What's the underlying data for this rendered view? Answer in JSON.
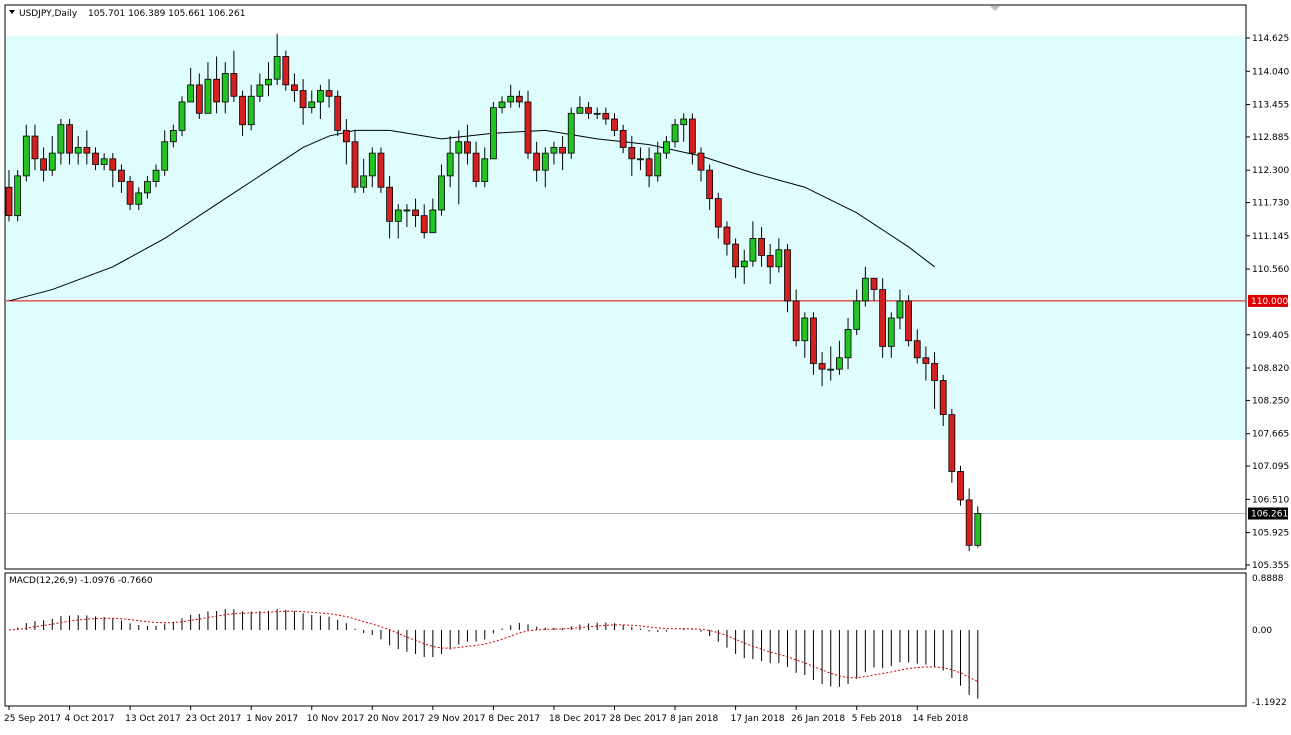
{
  "header": {
    "symbol_label": "USDJPY,Daily",
    "ohlc_values": "105.701 106.389 105.661 106.261"
  },
  "macd": {
    "label": "MACD(12,26,9) -1.0976 -0.7660",
    "axis_ticks": [
      "0.8888",
      "0.00",
      "-1.1922"
    ]
  },
  "colors": {
    "bull": "#22c322",
    "bear": "#d42020",
    "zone": "#e0fdfd",
    "level_line": "#e00000",
    "ma_line": "#000000",
    "signal_line": "#d00000"
  },
  "chart_data": {
    "type": "candlestick",
    "title": "USDJPY,Daily",
    "ylim": [
      105.355,
      114.625
    ],
    "y_ticks": [
      "114.625",
      "114.040",
      "113.455",
      "112.885",
      "112.300",
      "111.730",
      "111.145",
      "110.560",
      "109.405",
      "108.820",
      "108.250",
      "107.665",
      "107.095",
      "106.510",
      "105.925",
      "105.355"
    ],
    "x_tick_labels": [
      "25 Sep 2017",
      "4 Oct 2017",
      "13 Oct 2017",
      "23 Oct 2017",
      "1 Nov 2017",
      "10 Nov 2017",
      "20 Nov 2017",
      "29 Nov 2017",
      "8 Dec 2017",
      "18 Dec 2017",
      "28 Dec 2017",
      "8 Jan 2018",
      "17 Jan 2018",
      "26 Jan 2018",
      "5 Feb 2018",
      "14 Feb 2018"
    ],
    "x_tick_index": [
      0,
      7,
      14,
      21,
      28,
      35,
      42,
      49,
      56,
      63,
      70,
      77,
      84,
      91,
      98,
      105
    ],
    "horizontal_level": {
      "value": 110.0,
      "label": "110.000"
    },
    "current_price": {
      "value": 106.261,
      "label": "106.261"
    },
    "support_zone": [
      107.55,
      114.67
    ],
    "candles": [
      [
        112.0,
        111.5,
        112.3,
        111.4
      ],
      [
        111.5,
        112.2,
        112.3,
        111.4
      ],
      [
        112.2,
        112.9,
        113.1,
        112.1
      ],
      [
        112.9,
        112.5,
        113.1,
        112.3
      ],
      [
        112.5,
        112.3,
        112.7,
        112.1
      ],
      [
        112.3,
        112.6,
        112.9,
        112.2
      ],
      [
        112.6,
        113.1,
        113.2,
        112.4
      ],
      [
        113.1,
        112.6,
        113.2,
        112.4
      ],
      [
        112.6,
        112.7,
        112.9,
        112.4
      ],
      [
        112.7,
        112.6,
        113.0,
        112.4
      ],
      [
        112.6,
        112.4,
        112.7,
        112.3
      ],
      [
        112.4,
        112.5,
        112.6,
        112.3
      ],
      [
        112.5,
        112.3,
        112.6,
        112.0
      ],
      [
        112.3,
        112.1,
        112.4,
        111.9
      ],
      [
        112.1,
        111.7,
        112.2,
        111.6
      ],
      [
        111.7,
        111.9,
        112.0,
        111.6
      ],
      [
        111.9,
        112.1,
        112.2,
        111.8
      ],
      [
        112.1,
        112.3,
        112.4,
        112.0
      ],
      [
        112.3,
        112.8,
        113.0,
        112.2
      ],
      [
        112.8,
        113.0,
        113.1,
        112.7
      ],
      [
        113.0,
        113.5,
        113.6,
        112.9
      ],
      [
        113.5,
        113.8,
        114.1,
        113.5
      ],
      [
        113.8,
        113.3,
        114.0,
        113.2
      ],
      [
        113.3,
        113.9,
        114.2,
        113.3
      ],
      [
        113.9,
        113.5,
        114.3,
        113.3
      ],
      [
        113.5,
        114.0,
        114.2,
        113.3
      ],
      [
        114.0,
        113.6,
        114.4,
        113.5
      ],
      [
        113.6,
        113.1,
        113.7,
        112.9
      ],
      [
        113.1,
        113.6,
        113.8,
        113.0
      ],
      [
        113.6,
        113.8,
        114.0,
        113.5
      ],
      [
        113.8,
        113.9,
        114.2,
        113.6
      ],
      [
        113.9,
        114.3,
        114.7,
        113.8
      ],
      [
        114.3,
        113.8,
        114.4,
        113.7
      ],
      [
        113.8,
        113.7,
        114.0,
        113.5
      ],
      [
        113.7,
        113.4,
        113.9,
        113.1
      ],
      [
        113.4,
        113.5,
        113.7,
        113.3
      ],
      [
        113.5,
        113.7,
        113.8,
        113.2
      ],
      [
        113.7,
        113.6,
        113.9,
        113.4
      ],
      [
        113.6,
        113.0,
        113.7,
        112.9
      ],
      [
        113.0,
        112.8,
        113.2,
        112.4
      ],
      [
        112.8,
        112.0,
        113.0,
        111.9
      ],
      [
        112.0,
        112.2,
        112.5,
        111.9
      ],
      [
        112.2,
        112.6,
        112.7,
        112.0
      ],
      [
        112.6,
        112.0,
        112.7,
        111.9
      ],
      [
        112.0,
        111.4,
        112.2,
        111.1
      ],
      [
        111.4,
        111.6,
        111.7,
        111.1
      ],
      [
        111.6,
        111.6,
        111.7,
        111.3
      ],
      [
        111.6,
        111.5,
        111.8,
        111.3
      ],
      [
        111.5,
        111.2,
        111.7,
        111.1
      ],
      [
        111.2,
        111.6,
        111.8,
        111.2
      ],
      [
        111.6,
        112.2,
        112.4,
        111.5
      ],
      [
        112.2,
        112.6,
        112.9,
        112.0
      ],
      [
        112.6,
        112.8,
        113.0,
        111.7
      ],
      [
        112.8,
        112.6,
        113.1,
        112.4
      ],
      [
        112.6,
        112.1,
        112.8,
        112.0
      ],
      [
        112.1,
        112.5,
        112.7,
        112.0
      ],
      [
        112.5,
        113.4,
        113.5,
        112.5
      ],
      [
        113.4,
        113.5,
        113.6,
        113.3
      ],
      [
        113.5,
        113.6,
        113.8,
        113.4
      ],
      [
        113.6,
        113.5,
        113.7,
        113.4
      ],
      [
        113.5,
        112.6,
        113.7,
        112.5
      ],
      [
        112.6,
        112.3,
        112.8,
        112.1
      ],
      [
        112.3,
        112.6,
        112.7,
        112.0
      ],
      [
        112.6,
        112.7,
        112.8,
        112.4
      ],
      [
        112.7,
        112.6,
        112.9,
        112.3
      ],
      [
        112.6,
        113.3,
        113.4,
        112.5
      ],
      [
        113.3,
        113.4,
        113.6,
        113.3
      ],
      [
        113.4,
        113.3,
        113.5,
        113.2
      ],
      [
        113.3,
        113.3,
        113.4,
        113.2
      ],
      [
        113.3,
        113.2,
        113.4,
        113.1
      ],
      [
        113.2,
        113.0,
        113.3,
        112.9
      ],
      [
        113.0,
        112.7,
        113.1,
        112.6
      ],
      [
        112.7,
        112.5,
        112.9,
        112.2
      ],
      [
        112.5,
        112.5,
        112.7,
        112.3
      ],
      [
        112.5,
        112.2,
        112.7,
        112.0
      ],
      [
        112.2,
        112.6,
        112.8,
        112.1
      ],
      [
        112.6,
        112.8,
        112.9,
        112.5
      ],
      [
        112.8,
        113.1,
        113.2,
        112.7
      ],
      [
        113.1,
        113.2,
        113.3,
        112.8
      ],
      [
        113.2,
        112.6,
        113.3,
        112.4
      ],
      [
        112.6,
        112.3,
        112.7,
        112.1
      ],
      [
        112.3,
        111.8,
        112.4,
        111.6
      ],
      [
        111.8,
        111.3,
        111.9,
        111.1
      ],
      [
        111.3,
        111.0,
        111.4,
        110.8
      ],
      [
        111.0,
        110.6,
        111.1,
        110.4
      ],
      [
        110.6,
        110.7,
        110.9,
        110.3
      ],
      [
        110.7,
        111.1,
        111.4,
        110.6
      ],
      [
        111.1,
        110.8,
        111.3,
        110.6
      ],
      [
        110.8,
        110.6,
        111.0,
        110.3
      ],
      [
        110.6,
        110.9,
        111.1,
        110.5
      ],
      [
        110.9,
        110.0,
        111.0,
        109.8
      ],
      [
        110.0,
        109.3,
        110.2,
        109.2
      ],
      [
        109.3,
        109.7,
        109.8,
        109.0
      ],
      [
        109.7,
        108.9,
        109.8,
        108.7
      ],
      [
        108.9,
        108.8,
        109.1,
        108.5
      ],
      [
        108.8,
        108.8,
        109.2,
        108.6
      ],
      [
        108.8,
        109.0,
        109.3,
        108.7
      ],
      [
        109.0,
        109.5,
        109.7,
        108.8
      ],
      [
        109.5,
        110.0,
        110.2,
        109.4
      ],
      [
        110.0,
        110.4,
        110.6,
        109.9
      ],
      [
        110.4,
        110.2,
        110.4,
        110.0
      ],
      [
        110.2,
        109.2,
        110.4,
        109.0
      ],
      [
        109.2,
        109.7,
        109.8,
        109.0
      ],
      [
        109.7,
        110.0,
        110.2,
        109.5
      ],
      [
        110.0,
        109.3,
        110.1,
        109.2
      ],
      [
        109.3,
        109.0,
        109.5,
        108.9
      ],
      [
        109.0,
        108.9,
        109.2,
        108.6
      ],
      [
        108.9,
        108.6,
        109.1,
        108.1
      ],
      [
        108.6,
        108.0,
        108.7,
        107.8
      ],
      [
        108.0,
        107.0,
        108.1,
        106.8
      ],
      [
        107.0,
        106.5,
        107.1,
        106.4
      ],
      [
        106.5,
        105.701,
        106.7,
        105.6
      ],
      [
        105.701,
        106.261,
        106.389,
        105.661
      ]
    ],
    "moving_average_path": [
      [
        0,
        110.0
      ],
      [
        5,
        110.2
      ],
      [
        12,
        110.6
      ],
      [
        18,
        111.1
      ],
      [
        25,
        111.8
      ],
      [
        30,
        112.3
      ],
      [
        34,
        112.7
      ],
      [
        37,
        112.9
      ],
      [
        40,
        113.0
      ],
      [
        44,
        113.0
      ],
      [
        50,
        112.85
      ],
      [
        56,
        112.95
      ],
      [
        62,
        113.0
      ],
      [
        68,
        112.85
      ],
      [
        74,
        112.75
      ],
      [
        80,
        112.55
      ],
      [
        86,
        112.25
      ],
      [
        92,
        112.0
      ],
      [
        98,
        111.55
      ],
      [
        104,
        110.95
      ],
      [
        107,
        110.6
      ]
    ],
    "macd_histogram_scale": [
      -1.1922,
      0.8888
    ]
  }
}
